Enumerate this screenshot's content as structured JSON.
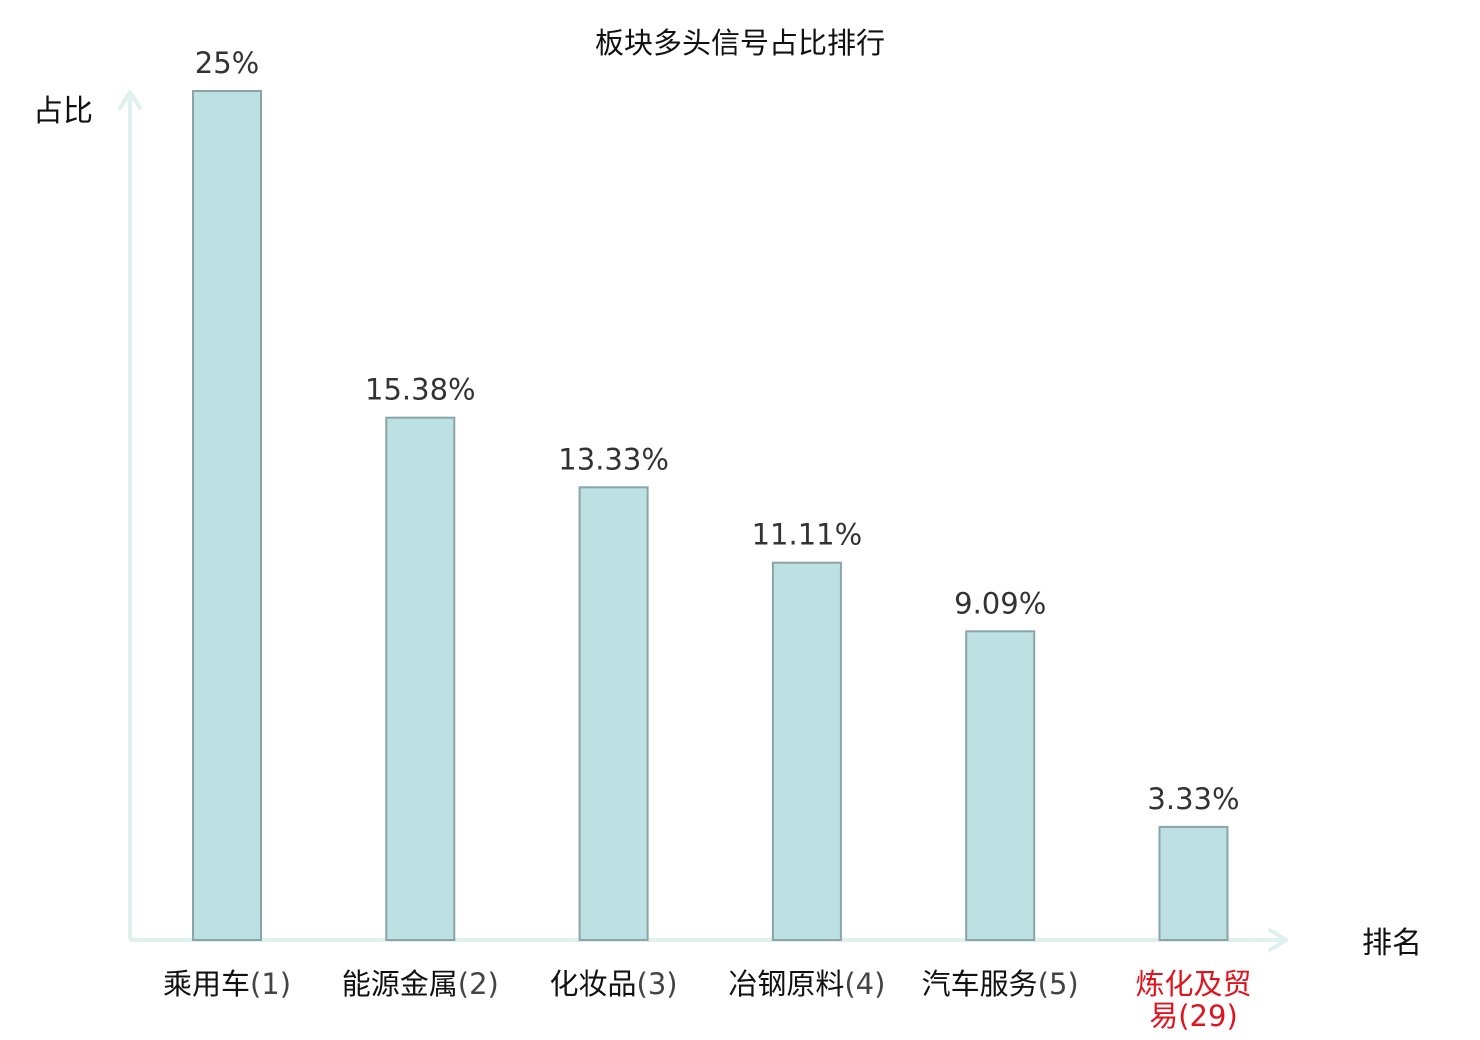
{
  "chart_data": {
    "type": "bar",
    "title": "板块多头信号占比排行",
    "xlabel": "排名",
    "ylabel": "占比",
    "categories": [
      {
        "name": "乘用车",
        "rank": "(1)",
        "highlight": false
      },
      {
        "name": "能源金属",
        "rank": "(2)",
        "highlight": false
      },
      {
        "name": "化妆品",
        "rank": "(3)",
        "highlight": false
      },
      {
        "name": "冶钢原料",
        "rank": "(4)",
        "highlight": false
      },
      {
        "name": "汽车服务",
        "rank": "(5)",
        "highlight": false
      },
      {
        "name": "炼化及贸易",
        "name_lines": [
          "炼化及贸",
          "易"
        ],
        "rank": "(29)",
        "highlight": true
      }
    ],
    "values": [
      25,
      15.38,
      13.33,
      11.11,
      9.09,
      3.33
    ],
    "value_labels": [
      "25%",
      "15.38%",
      "13.33%",
      "11.11%",
      "9.09%",
      "3.33%"
    ],
    "ylim": [
      0,
      25
    ],
    "grid": false,
    "legend": "none",
    "colors": {
      "bar_fill": "#bde0e2",
      "bar_stroke": "#8aa5a8",
      "axis": "#dff1ef",
      "highlight_text": "#e0141e",
      "value_text": "#333333"
    }
  }
}
